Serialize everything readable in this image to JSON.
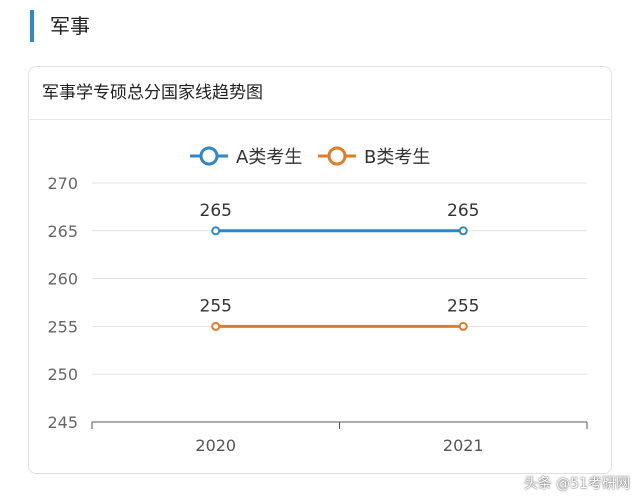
{
  "section": {
    "title": "军事"
  },
  "card": {
    "title": "军事学专硕总分国家线趋势图"
  },
  "watermark": "头条 @51考研网",
  "chart_data": {
    "type": "line",
    "title": "军事学专硕总分国家线趋势图",
    "categories": [
      "2020",
      "2021"
    ],
    "series": [
      {
        "name": "A类考生",
        "values": [
          265,
          265
        ],
        "color": "#2f86c8"
      },
      {
        "name": "B类考生",
        "values": [
          255,
          255
        ],
        "color": "#e07b28"
      }
    ],
    "yticks": [
      245,
      250,
      255,
      260,
      265,
      270
    ],
    "ylim": [
      245,
      270
    ],
    "grid": true,
    "legend_position": "top-center",
    "data_labels": true
  }
}
